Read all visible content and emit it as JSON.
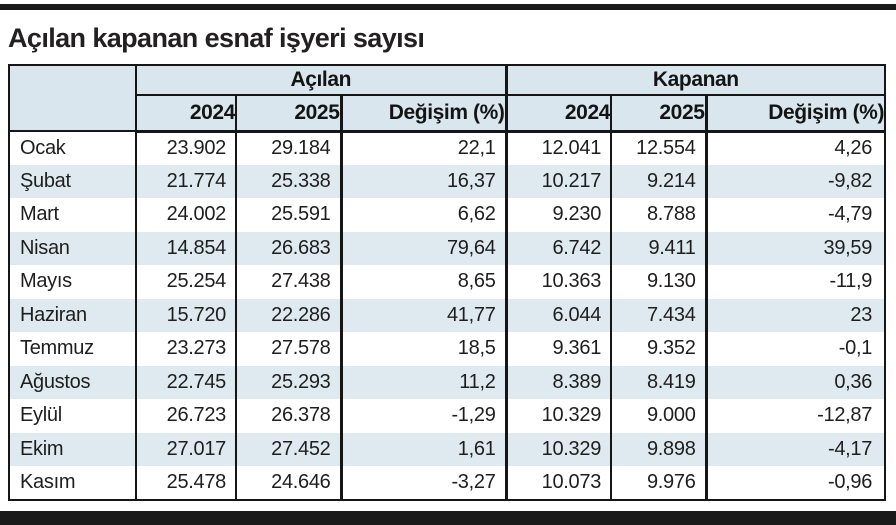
{
  "title": "Açılan kapanan esnaf işyeri sayısı",
  "colors": {
    "header_bg": "#d9e6ee",
    "stripe_bg": "#dfeaf0",
    "border": "#161616",
    "bar": "#1a1a1a",
    "text": "#1e1e1e",
    "title_text": "#232022"
  },
  "table": {
    "group_headers": {
      "acilan": "Açılan",
      "kapanan": "Kapanan"
    },
    "sub_headers": {
      "y2024": "2024",
      "y2025": "2025",
      "degisim": "Değişim (%)"
    },
    "rows": [
      {
        "month": "Ocak",
        "acilan": [
          "23.902",
          "29.184",
          "22,1"
        ],
        "kapanan": [
          "12.041",
          "12.554",
          "4,26"
        ]
      },
      {
        "month": "Şubat",
        "acilan": [
          "21.774",
          "25.338",
          "16,37"
        ],
        "kapanan": [
          "10.217",
          "9.214",
          "-9,82"
        ]
      },
      {
        "month": "Mart",
        "acilan": [
          "24.002",
          "25.591",
          "6,62"
        ],
        "kapanan": [
          "9.230",
          "8.788",
          "-4,79"
        ]
      },
      {
        "month": "Nisan",
        "acilan": [
          "14.854",
          "26.683",
          "79,64"
        ],
        "kapanan": [
          "6.742",
          "9.411",
          "39,59"
        ]
      },
      {
        "month": "Mayıs",
        "acilan": [
          "25.254",
          "27.438",
          "8,65"
        ],
        "kapanan": [
          "10.363",
          "9.130",
          "-11,9"
        ]
      },
      {
        "month": "Haziran",
        "acilan": [
          "15.720",
          "22.286",
          "41,77"
        ],
        "kapanan": [
          "6.044",
          "7.434",
          "23"
        ]
      },
      {
        "month": "Temmuz",
        "acilan": [
          "23.273",
          "27.578",
          "18,5"
        ],
        "kapanan": [
          "9.361",
          "9.352",
          "-0,1"
        ]
      },
      {
        "month": "Ağustos",
        "acilan": [
          "22.745",
          "25.293",
          "11,2"
        ],
        "kapanan": [
          "8.389",
          "8.419",
          "0,36"
        ]
      },
      {
        "month": "Eylül",
        "acilan": [
          "26.723",
          "26.378",
          "-1,29"
        ],
        "kapanan": [
          "10.329",
          "9.000",
          "-12,87"
        ]
      },
      {
        "month": "Ekim",
        "acilan": [
          "27.017",
          "27.452",
          "1,61"
        ],
        "kapanan": [
          "10.329",
          "9.898",
          "-4,17"
        ]
      },
      {
        "month": "Kasım",
        "acilan": [
          "25.478",
          "24.646",
          "-3,27"
        ],
        "kapanan": [
          "10.073",
          "9.976",
          "-0,96"
        ]
      }
    ]
  },
  "chart_data": {
    "type": "table",
    "title": "Açılan kapanan esnaf işyeri sayısı",
    "column_groups": [
      "Açılan",
      "Kapanan"
    ],
    "columns": [
      "2024",
      "2025",
      "Değişim (%)"
    ],
    "categories": [
      "Ocak",
      "Şubat",
      "Mart",
      "Nisan",
      "Mayıs",
      "Haziran",
      "Temmuz",
      "Ağustos",
      "Eylül",
      "Ekim",
      "Kasım"
    ],
    "series": [
      {
        "name": "Açılan 2024",
        "values": [
          23902,
          21774,
          24002,
          14854,
          25254,
          15720,
          23273,
          22745,
          26723,
          27017,
          25478
        ]
      },
      {
        "name": "Açılan 2025",
        "values": [
          29184,
          25338,
          25591,
          26683,
          27438,
          22286,
          27578,
          25293,
          26378,
          27452,
          24646
        ]
      },
      {
        "name": "Açılan Değişim (%)",
        "values": [
          22.1,
          16.37,
          6.62,
          79.64,
          8.65,
          41.77,
          18.5,
          11.2,
          -1.29,
          1.61,
          -3.27
        ]
      },
      {
        "name": "Kapanan 2024",
        "values": [
          12041,
          10217,
          9230,
          6742,
          10363,
          6044,
          9361,
          8389,
          10329,
          10329,
          10073
        ]
      },
      {
        "name": "Kapanan 2025",
        "values": [
          12554,
          9214,
          8788,
          9411,
          9130,
          7434,
          9352,
          8419,
          9000,
          9898,
          9976
        ]
      },
      {
        "name": "Kapanan Değişim (%)",
        "values": [
          4.26,
          -9.82,
          -4.79,
          39.59,
          -11.9,
          23,
          -0.1,
          0.36,
          -12.87,
          -4.17,
          -0.96
        ]
      }
    ]
  }
}
